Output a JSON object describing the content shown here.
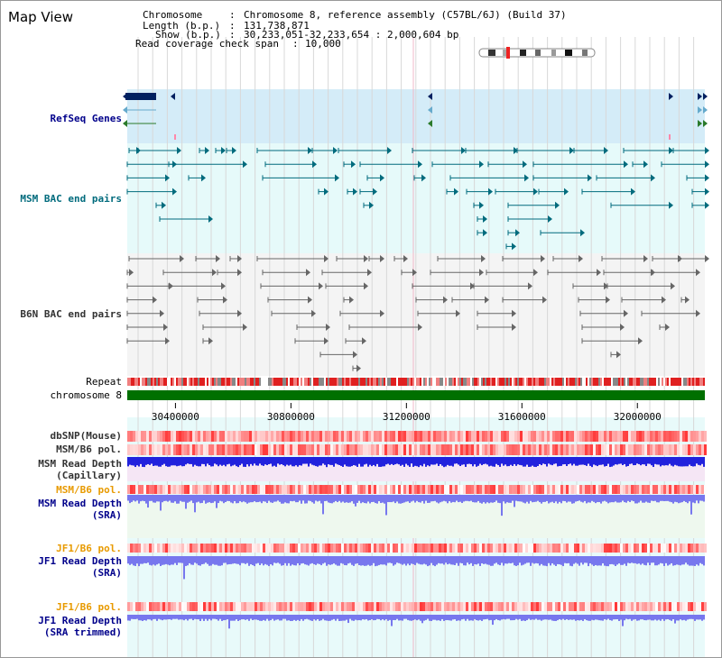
{
  "title": "Map View",
  "info": {
    "chromosome_key": "Chromosome",
    "chromosome_value": "Chromosome 8, reference assembly (C57BL/6J) (Build 37)",
    "length_key": "Length (b.p.)",
    "length_value": "131,738,871",
    "show_key": "Show (b.p.)",
    "show_value": "30,233,051-32,233,654 : 2,000,604 bp",
    "coverage_key": "Read coverage check span",
    "coverage_value": "10,000"
  },
  "tracks": {
    "refseq": "RefSeq Genes",
    "msm_bac": "MSM BAC end pairs",
    "b6n_bac": "B6N BAC end pairs",
    "repeat": "Repeat",
    "chromosome": "chromosome 8",
    "dbsnp": "dbSNP(Mouse)",
    "msm_b6_pol_1": "MSM/B6 pol.",
    "msm_depth_cap": "MSM Read Depth\n(Capillary)",
    "msm_b6_pol_2": "MSM/B6 pol.",
    "msm_depth_sra": "MSM Read Depth\n(SRA)",
    "jf1_b6_pol_1": "JF1/B6 pol.",
    "jf1_depth_sra": "JF1 Read Depth\n(SRA)",
    "jf1_b6_pol_2": "JF1/B6 pol.",
    "jf1_depth_trim": "JF1 Read Depth\n(SRA trimmed)"
  },
  "axis": {
    "ticks": [
      "30400000",
      "30800000",
      "31200000",
      "31600000",
      "32000000"
    ],
    "range": [
      30233051,
      32233654
    ]
  },
  "colors": {
    "refseq_bg": "#d4ecf8",
    "msm_bg": "#e6fafa",
    "b6n_bg": "#f4f4f4",
    "chromosome": "#007000",
    "depth_blue": "#2222dd",
    "depth_sra": "#7777ee"
  }
}
